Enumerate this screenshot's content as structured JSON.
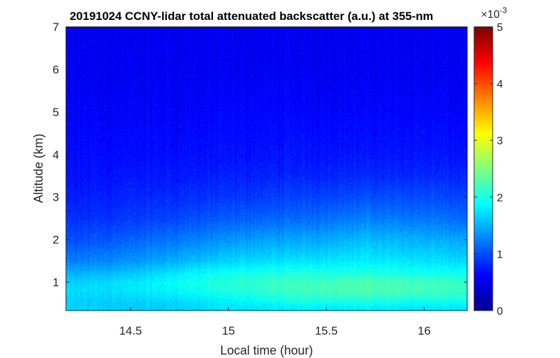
{
  "chart_data": {
    "type": "heatmap",
    "title": "20191024 CCNY-lidar total attenuated backscatter (a.u.) at 355-nm",
    "xlabel": "Local time (hour)",
    "ylabel": "Altitude (km)",
    "xlim": [
      14.17,
      16.22
    ],
    "ylim": [
      0.33,
      7.0
    ],
    "x_ticks": [
      14.5,
      15,
      15.5,
      16
    ],
    "x_tick_labels": [
      "14.5",
      "15",
      "15.5",
      "16"
    ],
    "y_ticks": [
      1,
      2,
      3,
      4,
      5,
      6,
      7
    ],
    "y_tick_labels": [
      "1",
      "2",
      "3",
      "4",
      "5",
      "6",
      "7"
    ],
    "colormap": "jet",
    "colorbar": {
      "range": [
        0,
        5
      ],
      "ticks": [
        0,
        1,
        2,
        3,
        4,
        5
      ],
      "tick_labels": [
        "0",
        "1",
        "2",
        "3",
        "4",
        "5"
      ],
      "multiplier_base": "×10",
      "multiplier_exp": "-3"
    },
    "profile_altitude_km": [
      0.4,
      0.6,
      0.8,
      1.0,
      1.2,
      1.5,
      2.0,
      2.5,
      3.0,
      3.5,
      4.0,
      5.0,
      6.0,
      7.0
    ],
    "profile_time_hour": [
      14.2,
      14.5,
      14.8,
      15.1,
      15.4,
      15.7,
      16.0,
      16.2
    ],
    "backscatter_x1e-3": [
      [
        1.65,
        1.6,
        1.65,
        1.75,
        1.8,
        1.8,
        1.75,
        1.75
      ],
      [
        1.65,
        1.65,
        1.75,
        1.9,
        2.05,
        2.05,
        2.0,
        2.0
      ],
      [
        1.7,
        1.75,
        1.9,
        2.05,
        2.2,
        2.25,
        2.2,
        2.15
      ],
      [
        1.65,
        1.75,
        1.95,
        2.1,
        2.2,
        2.25,
        2.2,
        2.15
      ],
      [
        1.5,
        1.6,
        1.85,
        2.0,
        2.05,
        2.05,
        2.0,
        1.95
      ],
      [
        1.25,
        1.35,
        1.55,
        1.7,
        1.75,
        1.8,
        1.75,
        1.7
      ],
      [
        1.0,
        1.1,
        1.25,
        1.4,
        1.45,
        1.55,
        1.5,
        1.45
      ],
      [
        0.85,
        0.9,
        1.0,
        1.1,
        1.15,
        1.25,
        1.2,
        1.15
      ],
      [
        0.75,
        0.8,
        0.85,
        0.9,
        0.95,
        1.0,
        1.0,
        0.95
      ],
      [
        0.7,
        0.72,
        0.75,
        0.78,
        0.8,
        0.82,
        0.82,
        0.8
      ],
      [
        0.65,
        0.66,
        0.68,
        0.7,
        0.72,
        0.72,
        0.72,
        0.7
      ],
      [
        0.6,
        0.6,
        0.6,
        0.62,
        0.62,
        0.62,
        0.62,
        0.6
      ],
      [
        0.57,
        0.57,
        0.57,
        0.57,
        0.57,
        0.57,
        0.57,
        0.57
      ],
      [
        0.55,
        0.55,
        0.55,
        0.55,
        0.55,
        0.55,
        0.55,
        0.55
      ]
    ]
  }
}
